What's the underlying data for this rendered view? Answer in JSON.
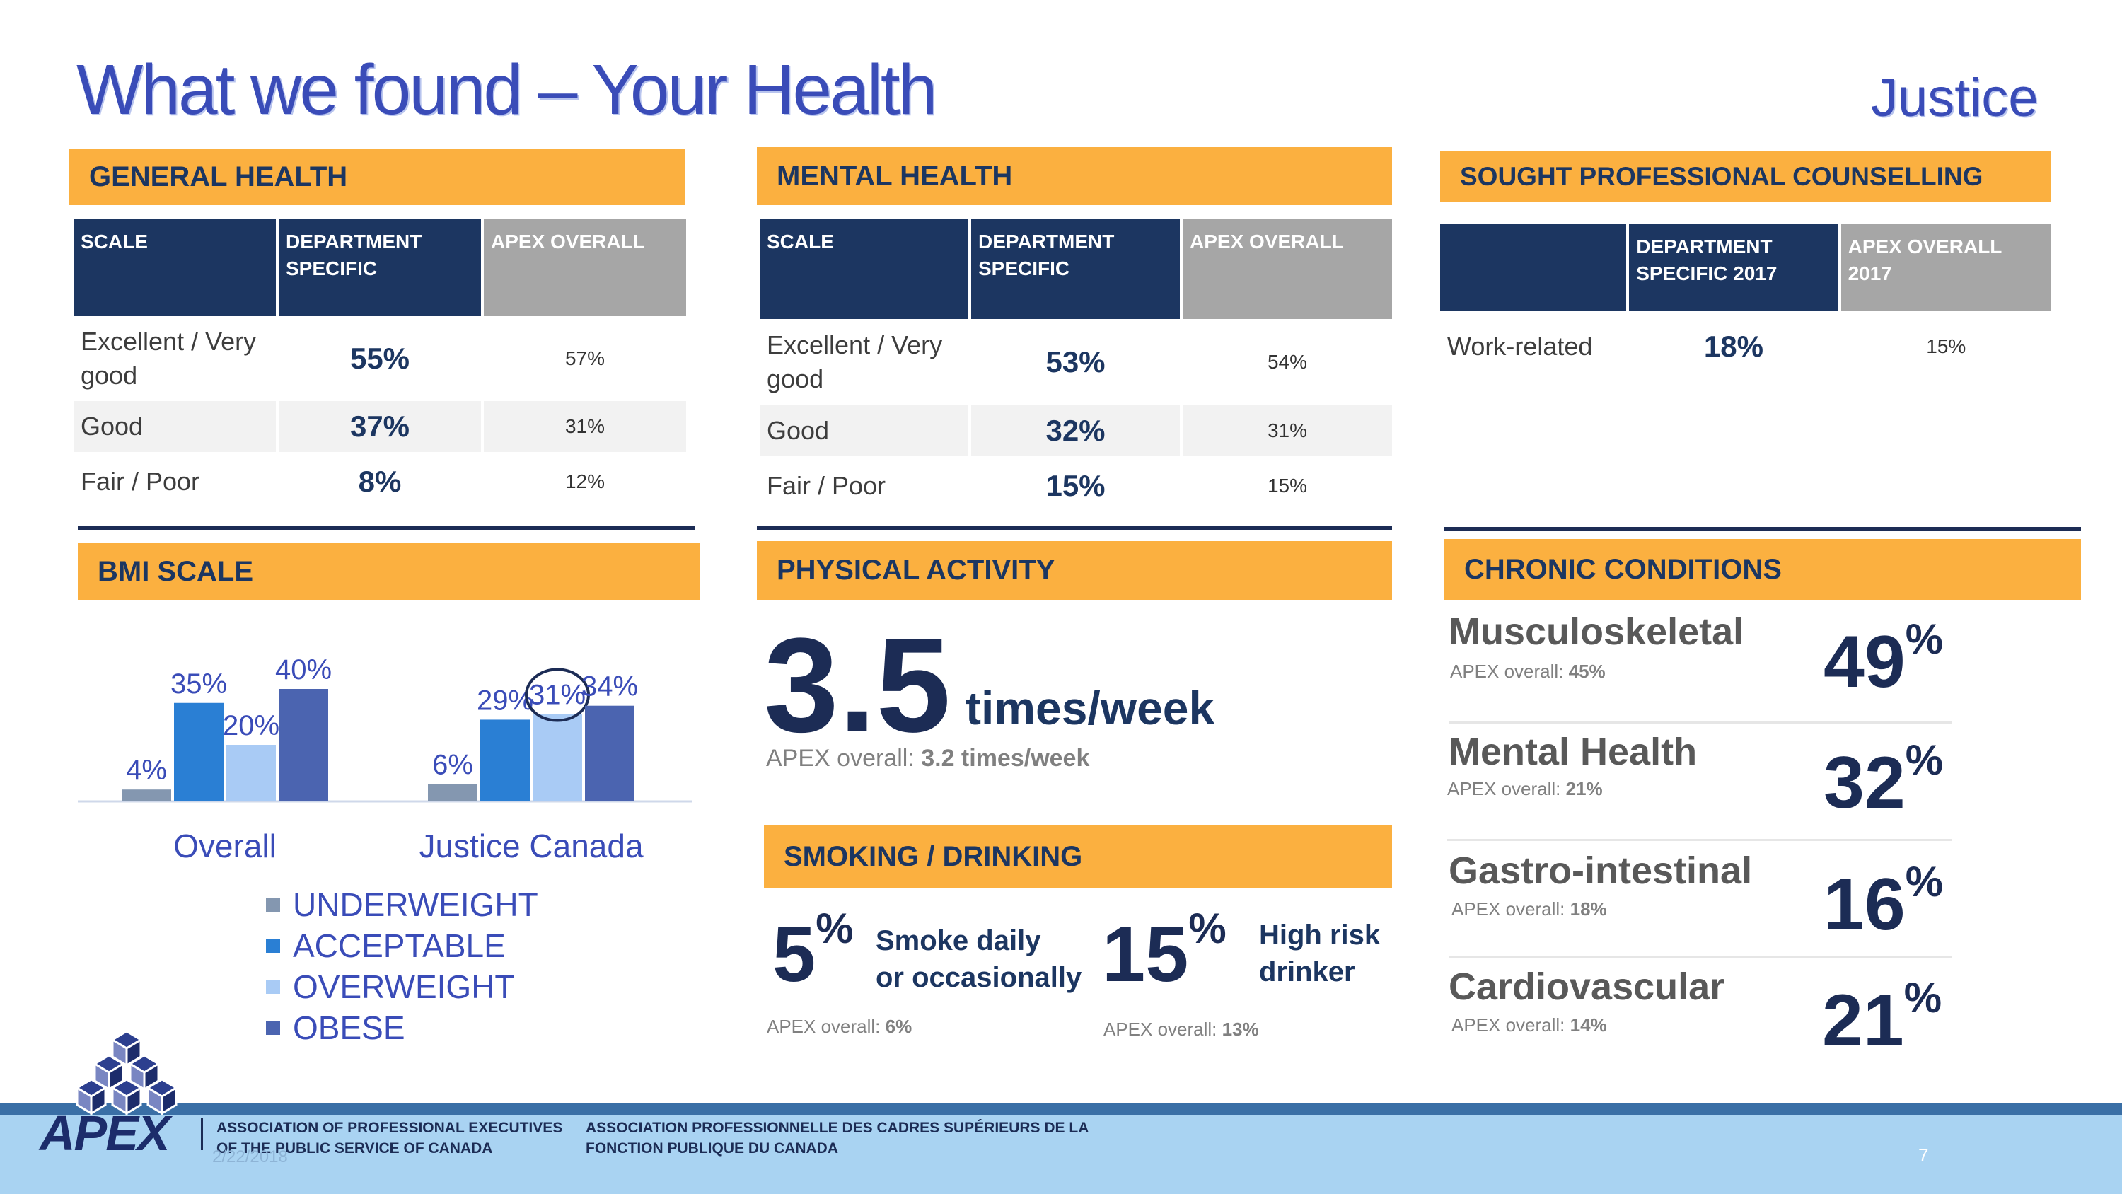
{
  "title": "What we found – Your Health",
  "department": "Justice",
  "general_health": {
    "header": "GENERAL HEALTH",
    "columns": [
      "SCALE",
      "DEPARTMENT SPECIFIC",
      "APEX OVERALL"
    ],
    "rows": [
      {
        "scale": "Excellent / Very good",
        "dept": "55%",
        "apex": "57%"
      },
      {
        "scale": "Good",
        "dept": "37%",
        "apex": "31%"
      },
      {
        "scale": "Fair / Poor",
        "dept": "8%",
        "apex": "12%"
      }
    ]
  },
  "mental_health": {
    "header": "MENTAL HEALTH",
    "columns": [
      "SCALE",
      "DEPARTMENT SPECIFIC",
      "APEX OVERALL"
    ],
    "rows": [
      {
        "scale": "Excellent / Very good",
        "dept": "53%",
        "apex": "54%"
      },
      {
        "scale": "Good",
        "dept": "32%",
        "apex": "31%"
      },
      {
        "scale": "Fair / Poor",
        "dept": "15%",
        "apex": "15%"
      }
    ]
  },
  "counselling": {
    "header": "SOUGHT PROFESSIONAL COUNSELLING",
    "columns": [
      "",
      "DEPARTMENT SPECIFIC 2017",
      "APEX OVERALL 2017"
    ],
    "rows": [
      {
        "scale": "Work-related",
        "dept": "18%",
        "apex": "15%"
      }
    ]
  },
  "bmi": {
    "header": "BMI SCALE"
  },
  "chart_data": {
    "type": "bar",
    "categories": [
      "Overall",
      "Justice Canada"
    ],
    "series": [
      {
        "name": "UNDERWEIGHT",
        "values": [
          4,
          6
        ],
        "labels": [
          "4%",
          "6%"
        ],
        "color": "#8497b0"
      },
      {
        "name": "ACCEPTABLE",
        "values": [
          35,
          29
        ],
        "labels": [
          "35%",
          "29%"
        ],
        "color": "#2a7fd4"
      },
      {
        "name": "OVERWEIGHT",
        "values": [
          20,
          31
        ],
        "labels": [
          "20%",
          "31%"
        ],
        "color": "#a9cbf5"
      },
      {
        "name": "OBESE",
        "values": [
          40,
          34
        ],
        "labels": [
          "40%",
          "34%"
        ],
        "color": "#4b64b0"
      }
    ],
    "ylim": [
      0,
      40
    ],
    "legend_position": "bottom",
    "annotation": "31% circled",
    "grid": false
  },
  "physical_activity": {
    "header": "PHYSICAL ACTIVITY",
    "value": "3.5",
    "unit": "times/week",
    "apex_label": "APEX overall:",
    "apex_value": "3.2 times/week"
  },
  "smoking": {
    "header": "SMOKING / DRINKING",
    "items": [
      {
        "value": "5",
        "pct": "%",
        "line1": "Smoke daily",
        "line2": "or occasionally",
        "apex_label": "APEX overall:",
        "apex_value": "6%"
      },
      {
        "value": "15",
        "pct": "%",
        "line1": "High risk",
        "line2": "drinker",
        "apex_label": "APEX overall:",
        "apex_value": "13%"
      }
    ]
  },
  "chronic": {
    "header": "CHRONIC CONDITIONS",
    "items": [
      {
        "name": "Musculoskeletal",
        "apex_label": "APEX overall:",
        "apex_value": "45%",
        "value": "49",
        "pct": "%"
      },
      {
        "name": "Mental Health",
        "apex_label": "APEX overall:",
        "apex_value": "21%",
        "value": "32",
        "pct": "%"
      },
      {
        "name": "Gastro-intestinal",
        "apex_label": "APEX overall:",
        "apex_value": "18%",
        "value": "16",
        "pct": "%"
      },
      {
        "name": "Cardiovascular",
        "apex_label": "APEX overall:",
        "apex_value": "14%",
        "value": "21",
        "pct": "%"
      }
    ]
  },
  "footer": {
    "logo_text": "APEX",
    "en_line1": "ASSOCIATION OF PROFESSIONAL EXECUTIVES",
    "en_line2": "OF THE PUBLIC SERVICE OF CANADA",
    "fr_line1": "ASSOCIATION PROFESSIONNELLE DES CADRES SUPÉRIEURS DE LA",
    "fr_line2": "FONCTION PUBLIQUE DU CANADA",
    "date": "2/22/2018",
    "page_number": "7"
  },
  "colors": {
    "header_bg": "#fbb040",
    "navy": "#1c3661",
    "title_blue": "#3a4cb8",
    "grey_header": "#a6a6a6",
    "footer_bg": "#a9d3f2"
  }
}
